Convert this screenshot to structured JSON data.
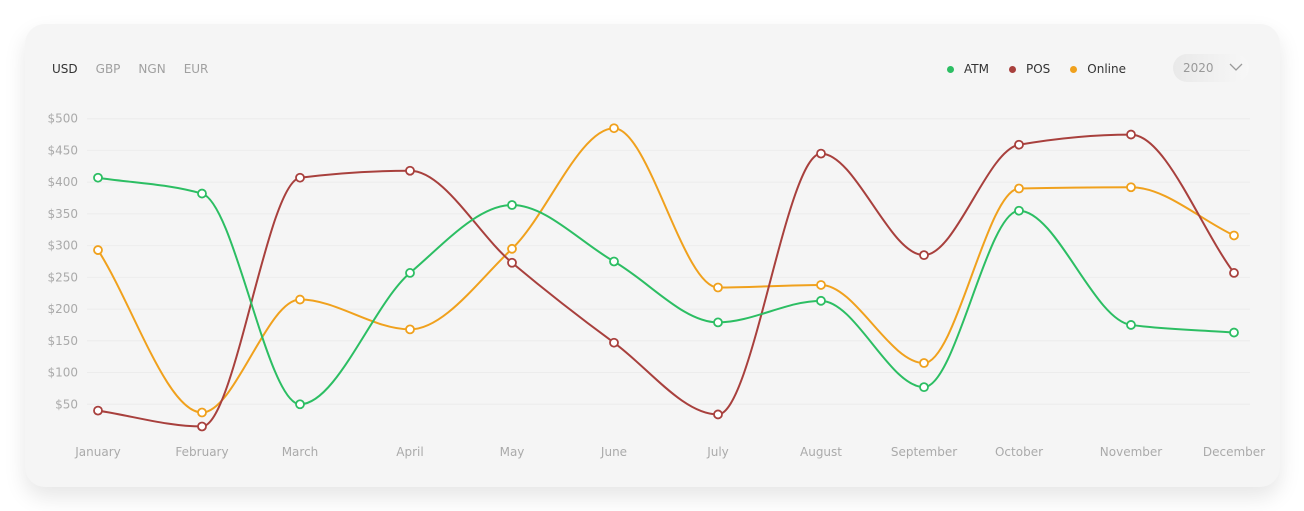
{
  "currencies": [
    {
      "label": "USD",
      "active": true
    },
    {
      "label": "GBP",
      "active": false
    },
    {
      "label": "NGN",
      "active": false
    },
    {
      "label": "EUR",
      "active": false
    }
  ],
  "year": "2020",
  "colors": {
    "ATM": "#2cbe63",
    "POS": "#a8403d",
    "Online": "#f0a11d",
    "grid": "#ececec"
  },
  "chart_data": {
    "type": "line",
    "categories": [
      "January",
      "February",
      "March",
      "April",
      "May",
      "June",
      "July",
      "August",
      "September",
      "October",
      "November",
      "December"
    ],
    "y_ticks": [
      50,
      100,
      150,
      200,
      250,
      300,
      350,
      400,
      450,
      500
    ],
    "y_tick_labels": [
      "$50",
      "$100",
      "$150",
      "$200",
      "$250",
      "$300",
      "$350",
      "$400",
      "$450",
      "$500"
    ],
    "ylim": [
      0,
      500
    ],
    "legend": "top-right",
    "series": [
      {
        "name": "ATM",
        "color": "#2cbe63",
        "values": [
          407,
          382,
          50,
          257,
          364,
          275,
          179,
          213,
          77,
          355,
          175,
          163
        ]
      },
      {
        "name": "POS",
        "color": "#a8403d",
        "values": [
          40,
          15,
          407,
          418,
          273,
          147,
          34,
          445,
          285,
          459,
          475,
          257
        ]
      },
      {
        "name": "Online",
        "color": "#f0a11d",
        "values": [
          293,
          37,
          215,
          168,
          295,
          485,
          234,
          238,
          115,
          390,
          392,
          316
        ]
      }
    ]
  }
}
